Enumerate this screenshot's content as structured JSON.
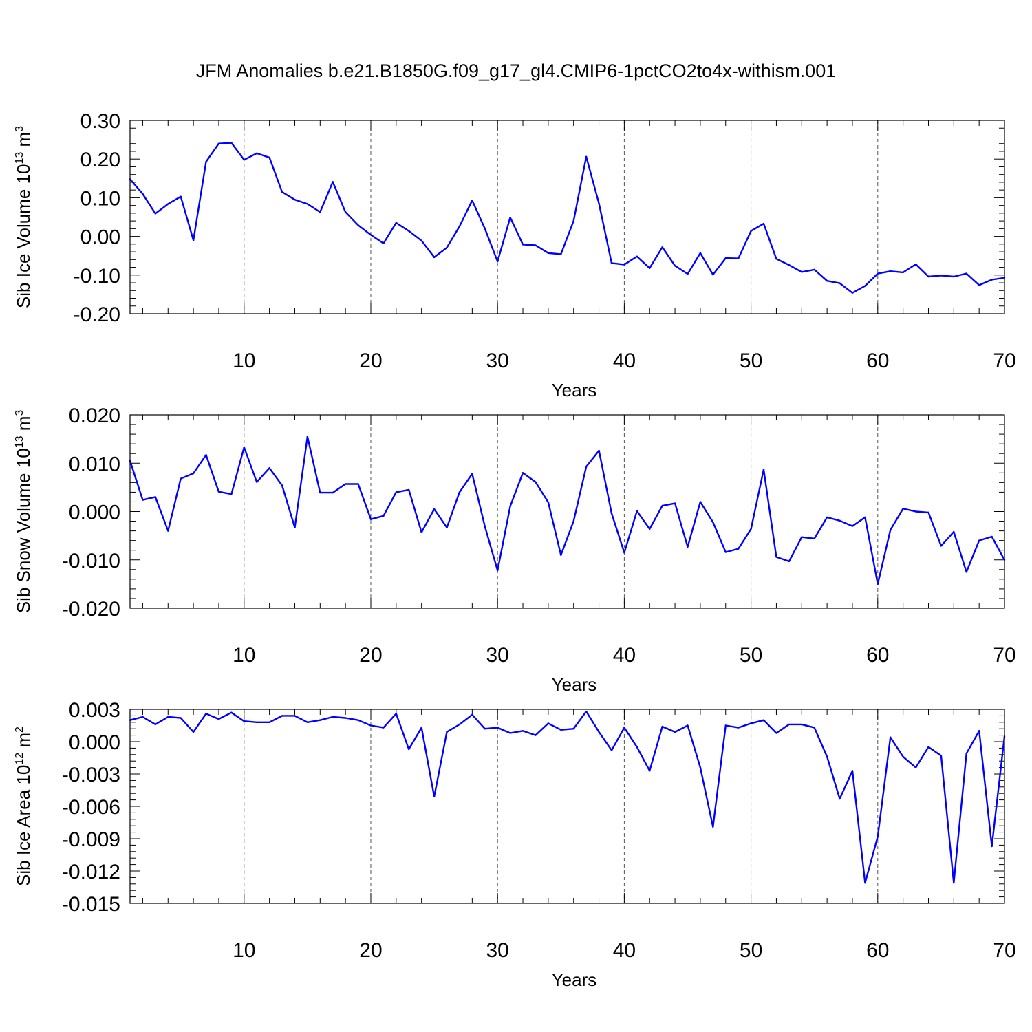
{
  "chart_data": {
    "title": "JFM Anomalies b.e21.B1850G.f09_g17_gl4.CMIP6-1pctCO2to4x-withism.001",
    "type": "line",
    "x_start": 1,
    "x_end": 70,
    "xticks": [
      10,
      20,
      30,
      40,
      50,
      60,
      70
    ],
    "xtick_labels": [
      "10",
      "20",
      "30",
      "40",
      "50",
      "60",
      "70"
    ],
    "panels": [
      {
        "type": "line",
        "ylabel": "Sib Ice Volume 10",
        "ylabel_exp": "13",
        "ylabel_unit": " m",
        "ylabel_unit_exp": "3",
        "xlabel": "Years",
        "ylim": [
          -0.2,
          0.3
        ],
        "yticks": [
          0.3,
          0.2,
          0.1,
          0.0,
          -0.1,
          -0.2
        ],
        "ytick_labels": [
          "0.30",
          "0.20",
          "0.10",
          "0.00",
          "-0.10",
          "-0.20"
        ],
        "series_name": "Sib Ice Volume",
        "values": [
          0.148,
          0.11,
          0.059,
          0.084,
          0.103,
          -0.01,
          0.193,
          0.24,
          0.242,
          0.198,
          0.215,
          0.204,
          0.115,
          0.095,
          0.084,
          0.063,
          0.141,
          0.063,
          0.029,
          0.004,
          -0.018,
          0.035,
          0.014,
          -0.011,
          -0.054,
          -0.029,
          0.026,
          0.093,
          0.02,
          -0.065,
          0.049,
          -0.021,
          -0.023,
          -0.043,
          -0.046,
          0.04,
          0.206,
          0.085,
          -0.069,
          -0.073,
          -0.052,
          -0.082,
          -0.028,
          -0.076,
          -0.097,
          -0.043,
          -0.099,
          -0.056,
          -0.057,
          0.014,
          0.033,
          -0.058,
          -0.074,
          -0.092,
          -0.086,
          -0.115,
          -0.121,
          -0.146,
          -0.128,
          -0.096,
          -0.09,
          -0.093,
          -0.072,
          -0.104,
          -0.101,
          -0.104,
          -0.096,
          -0.126,
          -0.112,
          -0.107
        ]
      },
      {
        "type": "line",
        "ylabel": "Sib Snow Volume 10",
        "ylabel_exp": "13",
        "ylabel_unit": " m",
        "ylabel_unit_exp": "3",
        "xlabel": "Years",
        "ylim": [
          -0.02,
          0.02
        ],
        "yticks": [
          0.02,
          0.01,
          0.0,
          -0.01,
          -0.02
        ],
        "ytick_labels": [
          "0.020",
          "0.010",
          "0.000",
          "-0.010",
          "-0.020"
        ],
        "series_name": "Sib Snow Volume",
        "values": [
          0.0105,
          0.0024,
          0.003,
          -0.004,
          0.0068,
          0.0079,
          0.0117,
          0.0041,
          0.0036,
          0.0133,
          0.0061,
          0.009,
          0.0054,
          -0.0033,
          0.0155,
          0.0039,
          0.0039,
          0.0057,
          0.0057,
          -0.0016,
          -0.0009,
          0.004,
          0.0045,
          -0.0043,
          0.0005,
          -0.0033,
          0.004,
          0.0078,
          -0.0031,
          -0.0122,
          0.0011,
          0.008,
          0.0061,
          0.0019,
          -0.009,
          -0.002,
          0.0093,
          0.0126,
          -0.0004,
          -0.0085,
          0.0001,
          -0.0036,
          0.0012,
          0.0017,
          -0.0073,
          0.002,
          -0.0022,
          -0.0084,
          -0.0077,
          -0.0036,
          0.0087,
          -0.0094,
          -0.0103,
          -0.0053,
          -0.0056,
          -0.0012,
          -0.0019,
          -0.003,
          -0.0012,
          -0.015,
          -0.0038,
          0.0006,
          0.0,
          -0.0002,
          -0.0071,
          -0.0042,
          -0.0125,
          -0.006,
          -0.0052,
          -0.01
        ]
      },
      {
        "type": "line",
        "ylabel": "Sib Ice Area 10",
        "ylabel_exp": "12",
        "ylabel_unit": " m",
        "ylabel_unit_exp": "2",
        "xlabel": "Years",
        "ylim": [
          -0.015,
          0.003
        ],
        "yticks": [
          0.003,
          0.0,
          -0.003,
          -0.006,
          -0.009,
          -0.012,
          -0.015
        ],
        "ytick_labels": [
          "0.003",
          "0.000",
          "-0.003",
          "-0.006",
          "-0.009",
          "-0.012",
          "-0.015"
        ],
        "series_name": "Sib Ice Area",
        "values": [
          0.002,
          0.0023,
          0.0016,
          0.0023,
          0.0022,
          0.0009,
          0.0026,
          0.0021,
          0.0027,
          0.0019,
          0.0018,
          0.0018,
          0.0024,
          0.0024,
          0.0018,
          0.002,
          0.0023,
          0.0022,
          0.002,
          0.0015,
          0.0013,
          0.0026,
          -0.0007,
          0.0013,
          -0.0051,
          0.0009,
          0.0016,
          0.0025,
          0.0012,
          0.0013,
          0.0008,
          0.001,
          0.0006,
          0.0017,
          0.0011,
          0.0012,
          0.0028,
          0.0009,
          -0.0008,
          0.0013,
          -0.0005,
          -0.0027,
          0.0014,
          0.0009,
          0.0015,
          -0.0024,
          -0.0079,
          0.0015,
          0.0013,
          0.0017,
          0.002,
          0.0008,
          0.0016,
          0.0016,
          0.0013,
          -0.0014,
          -0.0053,
          -0.0027,
          -0.0131,
          -0.0088,
          0.0004,
          -0.0014,
          -0.0024,
          -0.0005,
          -0.0013,
          -0.0131,
          -0.0011,
          0.001,
          -0.0097,
          0.0005
        ]
      }
    ]
  }
}
